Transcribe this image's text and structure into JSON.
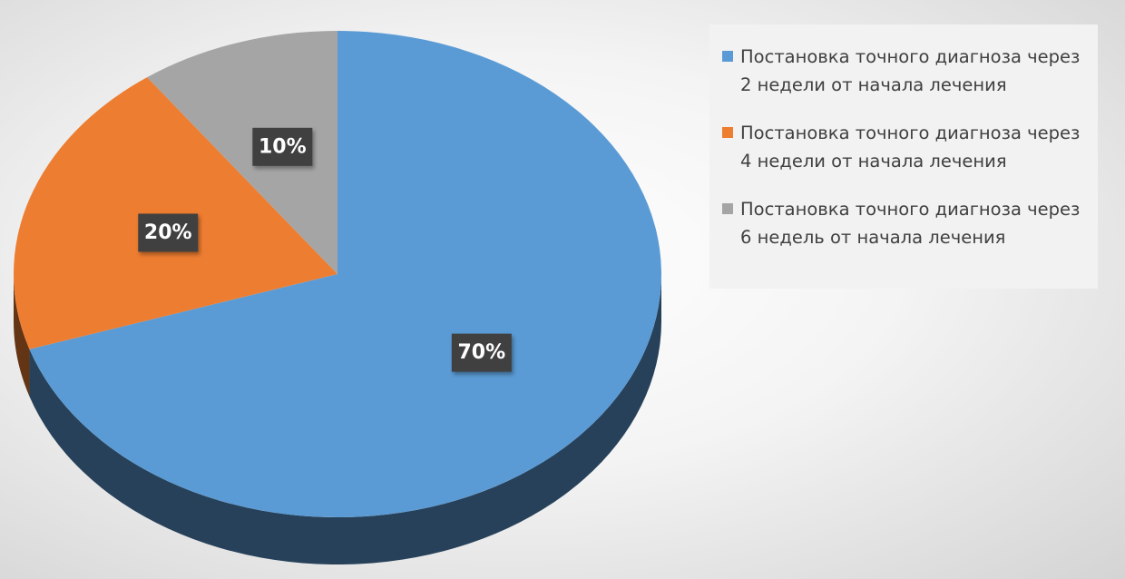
{
  "chart_data": {
    "type": "pie",
    "three_d": true,
    "categories": [
      "Постановка точного диагноза через 2 недели от начала лечения",
      "Постановка точного диагноза через 4 недели от начала лечения",
      "Постановка точного диагноза через 6 недель от начала лечения"
    ],
    "values": [
      70,
      20,
      10
    ],
    "value_labels": [
      "70%",
      "20%",
      "10%"
    ],
    "colors": [
      "#5b9bd5",
      "#ed7d31",
      "#a5a5a5"
    ],
    "legend": "right"
  }
}
